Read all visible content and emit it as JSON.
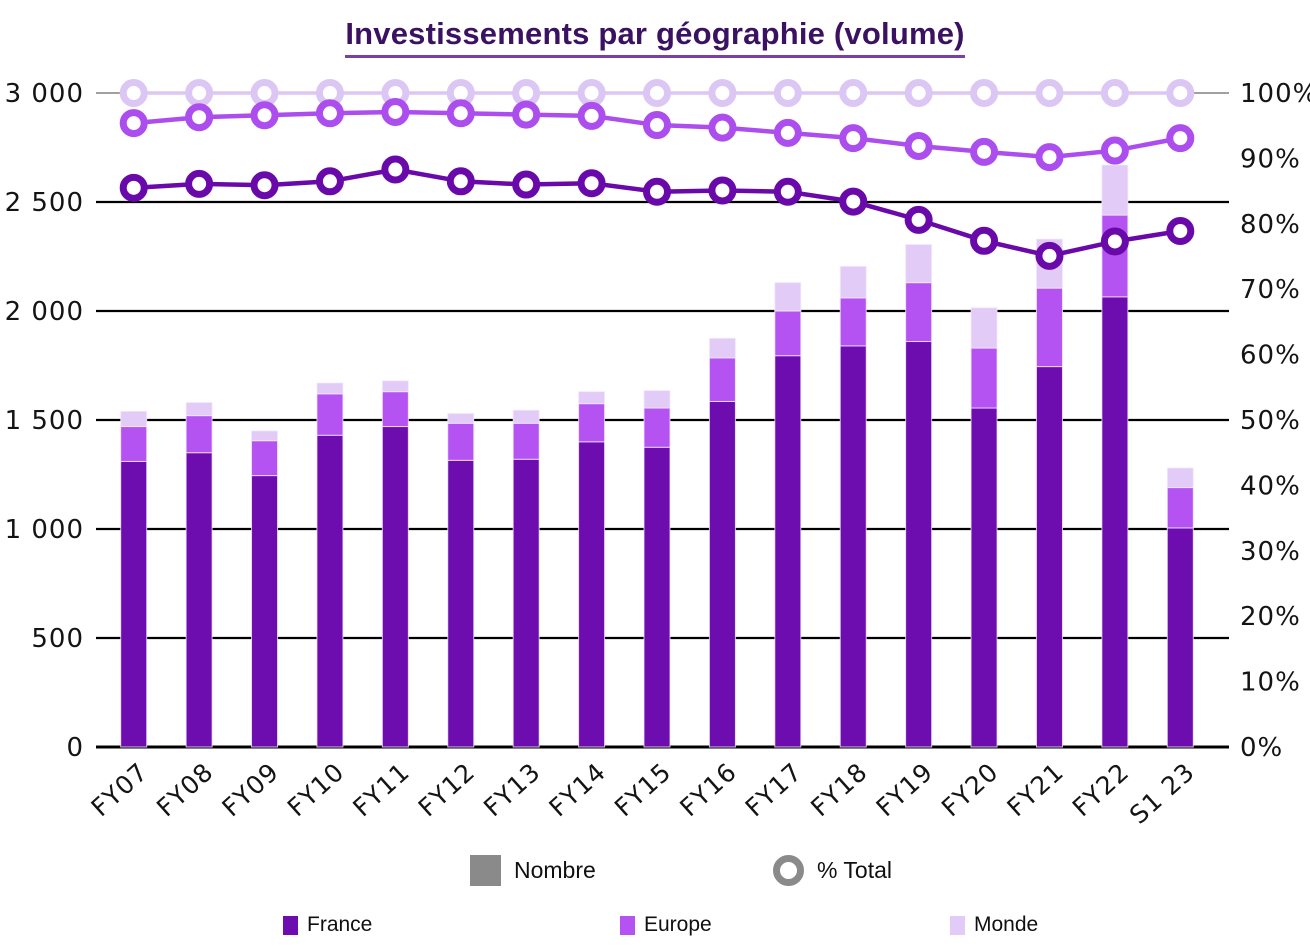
{
  "title": "Investissements par géographie (volume)",
  "chart_data": {
    "type": "bar",
    "subtype": "stacked-bar-with-percent-lines",
    "title": "Investissements par géographie (volume)",
    "categories": [
      "FY07",
      "FY08",
      "FY09",
      "FY10",
      "FY11",
      "FY12",
      "FY13",
      "FY14",
      "FY15",
      "FY16",
      "FY17",
      "FY18",
      "FY19",
      "FY20",
      "FY21",
      "FY22",
      "S1 23"
    ],
    "stacked_bar_series": [
      {
        "name": "France",
        "color": "#6D0CAF",
        "values": [
          1310,
          1350,
          1245,
          1430,
          1470,
          1315,
          1320,
          1400,
          1375,
          1585,
          1795,
          1840,
          1860,
          1555,
          1745,
          2065,
          1005
        ]
      },
      {
        "name": "Europe",
        "color": "#B553F2",
        "values": [
          160,
          170,
          160,
          190,
          160,
          170,
          165,
          175,
          180,
          200,
          205,
          220,
          270,
          275,
          360,
          375,
          185
        ]
      },
      {
        "name": "Monde",
        "color": "#E2CBF7",
        "values": [
          70,
          60,
          45,
          50,
          50,
          45,
          60,
          55,
          80,
          90,
          130,
          145,
          175,
          185,
          225,
          230,
          90
        ]
      }
    ],
    "bar_totals": [
      1540,
      1580,
      1450,
      1670,
      1680,
      1530,
      1545,
      1630,
      1635,
      1875,
      2130,
      2205,
      2305,
      2015,
      2330,
      2670,
      1280
    ],
    "line_series": [
      {
        "name": "Monde % Total",
        "color": "#DCC6F3",
        "line_width": 3.5,
        "values": [
          100,
          100,
          100,
          100,
          100,
          100,
          100,
          100,
          100,
          100,
          100,
          100,
          100,
          100,
          100,
          100,
          100
        ]
      },
      {
        "name": "Europe % Total",
        "color": "#AC4DEE",
        "line_width": 4.5,
        "values": [
          95.4,
          96.3,
          96.6,
          96.9,
          97.1,
          96.9,
          96.7,
          96.5,
          95.1,
          94.7,
          93.9,
          93.1,
          91.9,
          91.0,
          90.2,
          91.2,
          93.1
        ]
      },
      {
        "name": "France % Total",
        "color": "#6A09A9",
        "line_width": 4.5,
        "values": [
          85.5,
          86.1,
          85.9,
          86.5,
          88.3,
          86.5,
          86.0,
          86.2,
          84.9,
          85.1,
          84.9,
          83.4,
          80.6,
          77.4,
          75.1,
          77.3,
          78.9
        ]
      }
    ],
    "left_axis": {
      "min": 0,
      "max": 3000,
      "tick_values": [
        0,
        500,
        1000,
        1500,
        2000,
        2500,
        3000
      ],
      "tick_labels": [
        "0",
        "500",
        "1 000",
        "1 500",
        "2 000",
        "2 500",
        "3 000"
      ]
    },
    "right_axis": {
      "min": 0,
      "max": 100,
      "tick_values": [
        0,
        10,
        20,
        30,
        40,
        50,
        60,
        70,
        80,
        90,
        100
      ],
      "tick_labels": [
        "0%",
        "10%",
        "20%",
        "30%",
        "40%",
        "50%",
        "60%",
        "70%",
        "80%",
        "90%",
        "100%"
      ]
    },
    "grid": true,
    "legend_position": "bottom"
  },
  "legend": {
    "measure_row": [
      {
        "label": "Nombre",
        "swatch": "square",
        "color": "#8A8A8A"
      },
      {
        "label": "% Total",
        "swatch": "ring",
        "color": "#8A8A8A"
      }
    ],
    "series_row": [
      {
        "label": "France",
        "color": "#6D0CAF"
      },
      {
        "label": "Europe",
        "color": "#B553F2"
      },
      {
        "label": "Monde",
        "color": "#E2CBF7"
      }
    ]
  },
  "colors": {
    "title_text": "#3A1261",
    "title_underline": "#7B3FA5",
    "gridline": "#000000",
    "top_gridline": "#808080",
    "axis_text": "#141414",
    "legend_gray": "#8A8A8A"
  }
}
